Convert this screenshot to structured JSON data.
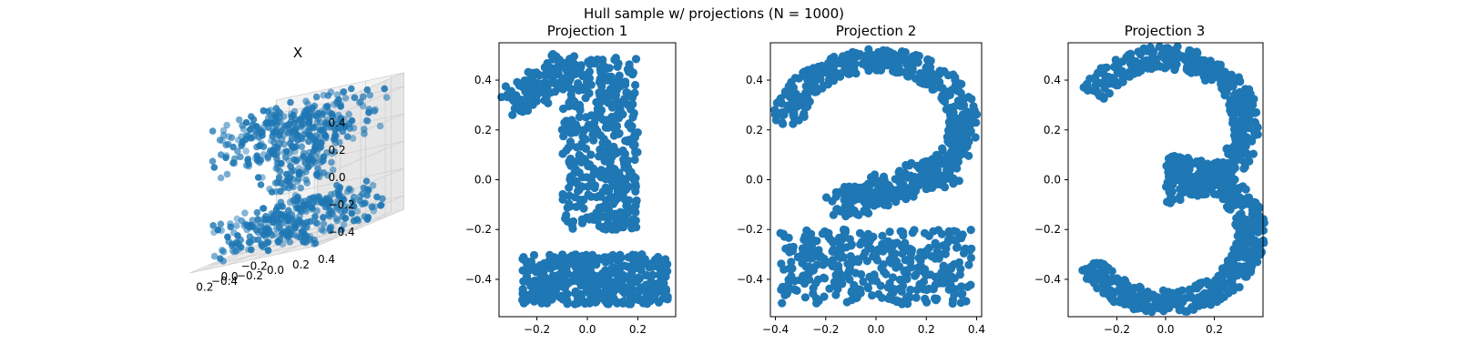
{
  "figure": {
    "suptitle": "Hull sample w/ projections (N = 1000)"
  },
  "colors": {
    "point": "#1f77b4",
    "pane_light": "#f2f2f2",
    "pane_mid": "#ebebeb",
    "pane_dark": "#e6e6e6",
    "grid": "#d0d0d0",
    "axis": "#000000"
  },
  "chart_data": [
    {
      "type": "scatter",
      "subtype": "3d",
      "title": "X",
      "xlim": [
        -0.35,
        0.35
      ],
      "ylim": [
        -0.5,
        0.5
      ],
      "zlim": [
        -0.5,
        0.5
      ],
      "xticks": [
        "-0.2",
        "0.0",
        "0.2"
      ],
      "yticks": [
        "-0.4",
        "-0.2",
        "0.0",
        "0.2",
        "0.4"
      ],
      "zticks": [
        "-0.4",
        "-0.2",
        "0.0",
        "0.2",
        "0.4"
      ],
      "n_points": 1000,
      "grid": true
    },
    {
      "type": "scatter",
      "title": "Projection 1",
      "glyph": "1",
      "xlim": [
        -0.35,
        0.35
      ],
      "ylim": [
        -0.55,
        0.55
      ],
      "xticks": [
        "-0.2",
        "0.0",
        "0.2"
      ],
      "yticks": [
        "-0.4",
        "-0.2",
        "0.0",
        "0.2",
        "0.4"
      ],
      "n_points": 1000
    },
    {
      "type": "scatter",
      "title": "Projection 2",
      "glyph": "2",
      "xlim": [
        -0.42,
        0.42
      ],
      "ylim": [
        -0.55,
        0.55
      ],
      "xticks": [
        "-0.4",
        "-0.2",
        "0.0",
        "0.2",
        "0.4"
      ],
      "yticks": [
        "-0.4",
        "-0.2",
        "0.0",
        "0.2",
        "0.4"
      ],
      "n_points": 1000
    },
    {
      "type": "scatter",
      "title": "Projection 3",
      "glyph": "3",
      "xlim": [
        -0.4,
        0.4
      ],
      "ylim": [
        -0.55,
        0.55
      ],
      "xticks": [
        "-0.2",
        "0.0",
        "0.2"
      ],
      "yticks": [
        "-0.4",
        "-0.2",
        "0.0",
        "0.2",
        "0.4"
      ],
      "n_points": 1000
    }
  ]
}
